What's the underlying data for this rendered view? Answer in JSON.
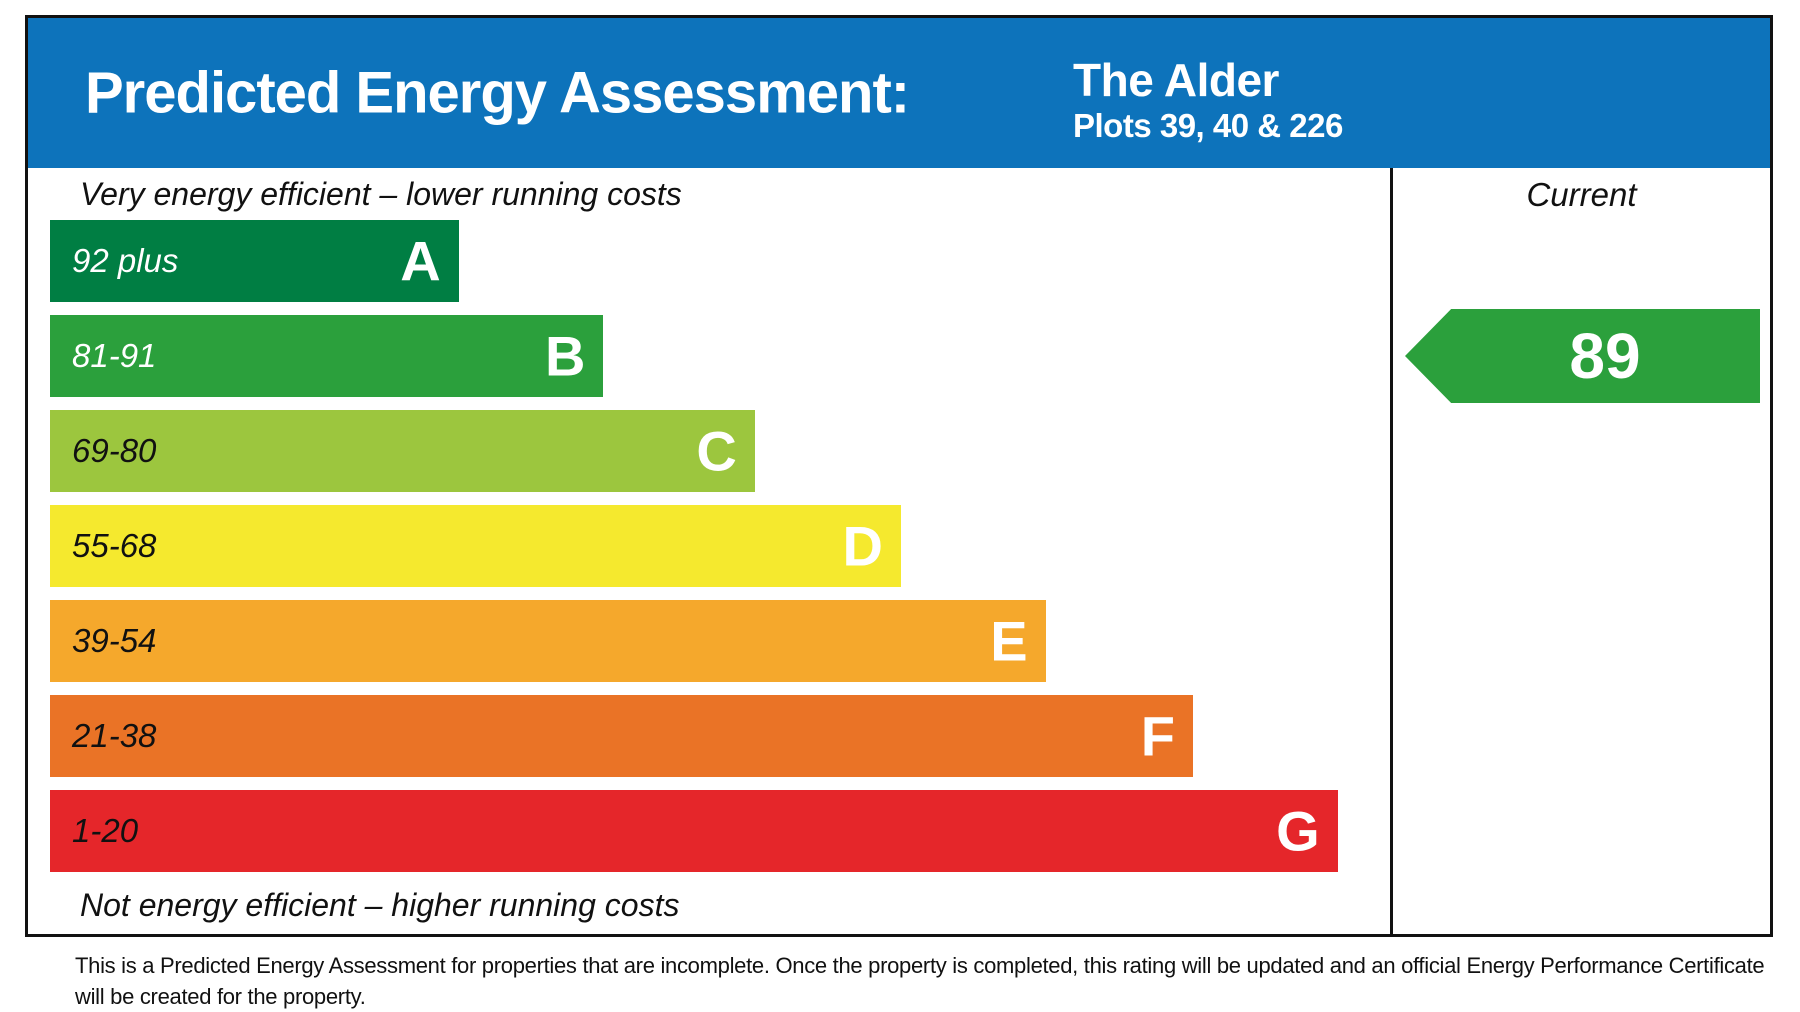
{
  "header": {
    "title": "Predicted Energy Assessment:",
    "property_name": "The Alder",
    "plots": "Plots 39, 40 & 226",
    "background_color": "#0d73bb"
  },
  "chart": {
    "top_caption": "Very energy efficient – lower running costs",
    "bottom_caption": "Not energy efficient – higher running costs",
    "current_label": "Current",
    "bands": [
      {
        "letter": "A",
        "range": "92 plus",
        "color": "#007e43",
        "range_text_color": "#ffffff",
        "width_pct": 30.5
      },
      {
        "letter": "B",
        "range": "81-91",
        "color": "#2ba03c",
        "range_text_color": "#ffffff",
        "width_pct": 41.3
      },
      {
        "letter": "C",
        "range": "69-80",
        "color": "#9cc63e",
        "range_text_color": "#111111",
        "width_pct": 52.6
      },
      {
        "letter": "D",
        "range": "55-68",
        "color": "#f5e92e",
        "range_text_color": "#111111",
        "width_pct": 63.5
      },
      {
        "letter": "E",
        "range": "39-54",
        "color": "#f5a82c",
        "range_text_color": "#111111",
        "width_pct": 74.3
      },
      {
        "letter": "F",
        "range": "21-38",
        "color": "#ea7326",
        "range_text_color": "#111111",
        "width_pct": 85.3
      },
      {
        "letter": "G",
        "range": "1-20",
        "color": "#e5262a",
        "range_text_color": "#111111",
        "width_pct": 96.1
      }
    ],
    "current": {
      "value": "89",
      "band_letter": "B",
      "row_index": 1,
      "color": "#2ba03c"
    }
  },
  "footer": {
    "text": "This is a Predicted Energy Assessment for properties that are incomplete. Once the property is completed, this rating will be updated and an official Energy Performance Certificate will be created for the property."
  },
  "chart_data": {
    "type": "bar",
    "orientation": "horizontal",
    "title": "Predicted Energy Assessment: The Alder — Plots 39, 40 & 226",
    "categories": [
      "A",
      "B",
      "C",
      "D",
      "E",
      "F",
      "G"
    ],
    "band_score_ranges": [
      "92 plus",
      "81-91",
      "69-80",
      "55-68",
      "39-54",
      "21-38",
      "1-20"
    ],
    "series": [
      {
        "name": "band_length_pct_of_track",
        "values": [
          30.5,
          41.3,
          52.6,
          63.5,
          74.3,
          85.3,
          96.1
        ]
      }
    ],
    "band_colors": [
      "#007e43",
      "#2ba03c",
      "#9cc63e",
      "#f5e92e",
      "#f5a82c",
      "#ea7326",
      "#e5262a"
    ],
    "current_rating": 89,
    "current_band": "B",
    "annotations": [
      "Very energy efficient – lower running costs",
      "Not energy efficient – higher running costs",
      "Current"
    ],
    "legend_position": "none",
    "grid": false
  }
}
